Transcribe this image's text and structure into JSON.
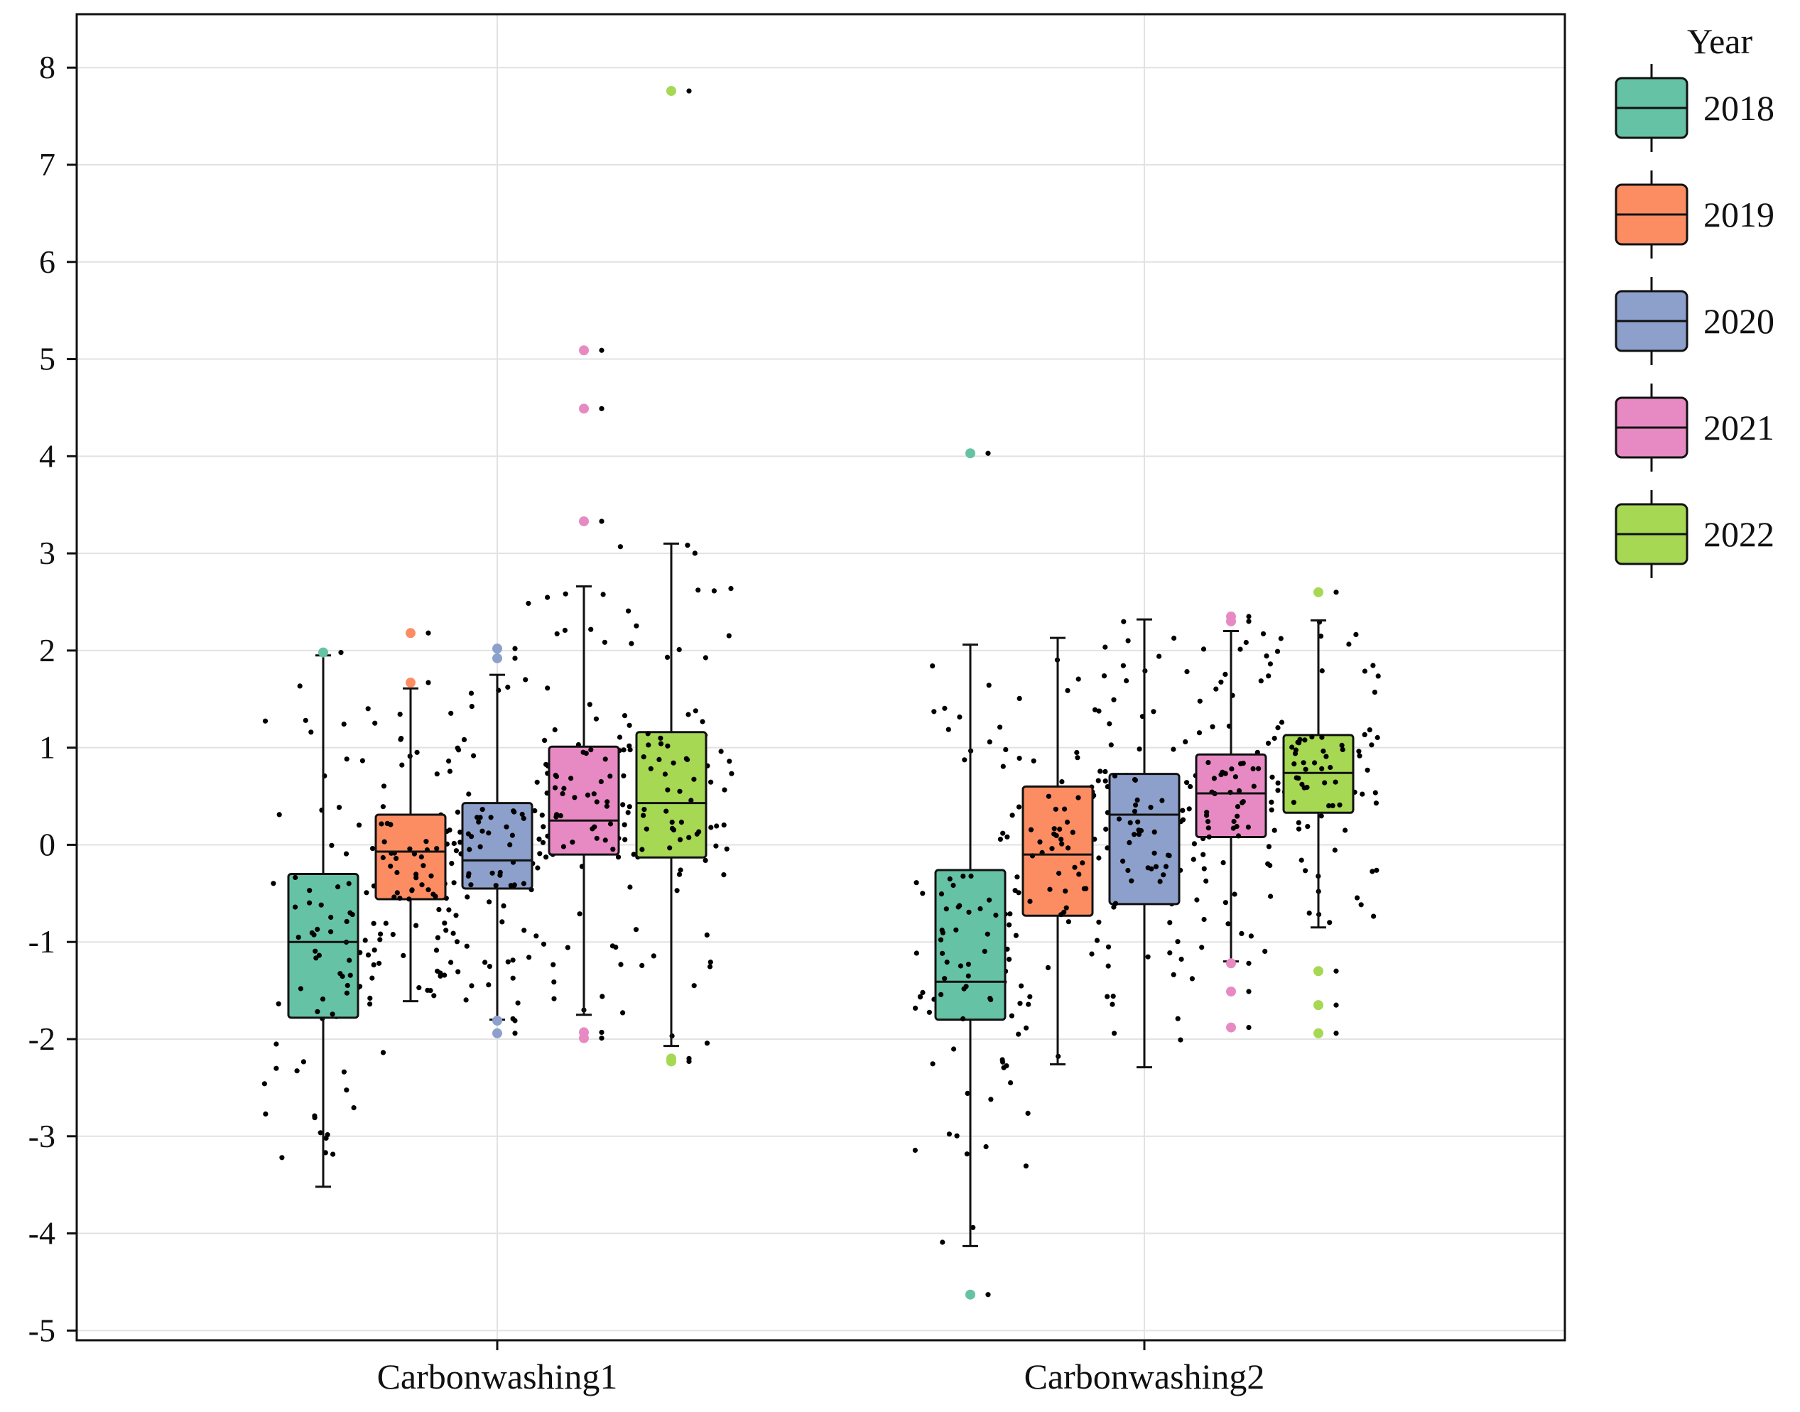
{
  "chart_data": {
    "type": "box",
    "categories": [
      "Carbonwashing1",
      "Carbonwashing2"
    ],
    "ylim": [
      -5.1,
      8.55
    ],
    "yticks": [
      8,
      7,
      6,
      5,
      4,
      3,
      2,
      1,
      0,
      -1,
      -2,
      -3,
      -4,
      -5
    ],
    "ytick_labels": [
      "8",
      "7",
      "6",
      "5",
      "4",
      "3",
      "2",
      "1",
      "0",
      "-1",
      "-2",
      "-3",
      "-4",
      "-5"
    ],
    "grid": true,
    "legend": {
      "title": "Year",
      "position": "right",
      "entries": [
        "2018",
        "2019",
        "2020",
        "2021",
        "2022"
      ]
    },
    "colors": {
      "2018": "#66c2a5",
      "2019": "#fc8d62",
      "2020": "#8da0cb",
      "2021": "#e78ac3",
      "2022": "#a6d854"
    },
    "series": [
      {
        "name": "2018",
        "boxes": [
          {
            "category": "Carbonwashing1",
            "q1": -1.78,
            "median": -1.0,
            "q3": -0.3,
            "whisker_low": -3.52,
            "whisker_high": 1.95,
            "outliers": [
              1.98
            ]
          },
          {
            "category": "Carbonwashing2",
            "q1": -1.8,
            "median": -1.41,
            "q3": -0.26,
            "whisker_low": -4.13,
            "whisker_high": 2.06,
            "outliers": [
              4.03,
              -4.63
            ]
          }
        ]
      },
      {
        "name": "2019",
        "boxes": [
          {
            "category": "Carbonwashing1",
            "q1": -0.56,
            "median": -0.07,
            "q3": 0.31,
            "whisker_low": -1.61,
            "whisker_high": 1.61,
            "outliers": [
              2.18,
              1.67
            ]
          },
          {
            "category": "Carbonwashing2",
            "q1": -0.73,
            "median": -0.1,
            "q3": 0.6,
            "whisker_low": -2.26,
            "whisker_high": 2.13,
            "outliers": []
          }
        ]
      },
      {
        "name": "2020",
        "boxes": [
          {
            "category": "Carbonwashing1",
            "q1": -0.45,
            "median": -0.16,
            "q3": 0.43,
            "whisker_low": -1.8,
            "whisker_high": 1.75,
            "outliers": [
              2.02,
              1.92,
              -1.81,
              -1.94
            ]
          },
          {
            "category": "Carbonwashing2",
            "q1": -0.61,
            "median": 0.31,
            "q3": 0.73,
            "whisker_low": -2.29,
            "whisker_high": 2.32,
            "outliers": []
          }
        ]
      },
      {
        "name": "2021",
        "boxes": [
          {
            "category": "Carbonwashing1",
            "q1": -0.1,
            "median": 0.25,
            "q3": 1.01,
            "whisker_low": -1.75,
            "whisker_high": 2.66,
            "outliers": [
              5.09,
              4.49,
              3.33,
              -1.93,
              -1.99
            ]
          },
          {
            "category": "Carbonwashing2",
            "q1": 0.08,
            "median": 0.53,
            "q3": 0.93,
            "whisker_low": -1.2,
            "whisker_high": 2.2,
            "outliers": [
              2.35,
              2.3,
              -1.22,
              -1.51,
              -1.88
            ]
          }
        ]
      },
      {
        "name": "2022",
        "boxes": [
          {
            "category": "Carbonwashing1",
            "q1": -0.13,
            "median": 0.43,
            "q3": 1.16,
            "whisker_low": -2.07,
            "whisker_high": 3.1,
            "outliers": [
              7.76,
              -2.2,
              -2.23
            ]
          },
          {
            "category": "Carbonwashing2",
            "q1": 0.33,
            "median": 0.74,
            "q3": 1.13,
            "whisker_low": -0.85,
            "whisker_high": 2.31,
            "outliers": [
              2.6,
              -1.3,
              -1.65,
              -1.94
            ]
          }
        ]
      }
    ]
  }
}
